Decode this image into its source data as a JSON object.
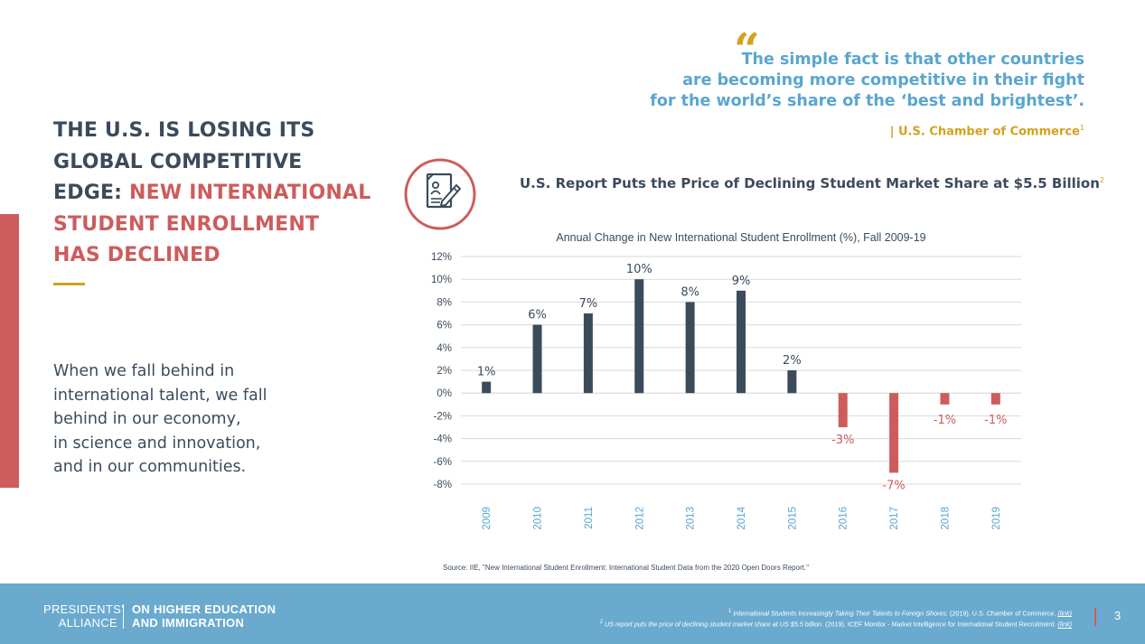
{
  "headline": {
    "line1": "THE U.S. IS LOSING ITS",
    "line2": "GLOBAL COMPETITIVE",
    "line3_lead": "EDGE: ",
    "line3_highlight": "NEW INTERNATIONAL",
    "line4": "STUDENT ENROLLMENT",
    "line5": "HAS DECLINED"
  },
  "body_lines": [
    "When we fall behind in",
    "international talent, we fall",
    "behind in our economy,",
    "in science and innovation,",
    "and in our communities."
  ],
  "quote": {
    "mark": "“",
    "line1": "The simple fact is that other countries",
    "line2": "are becoming more competitive in their fight",
    "line3": "for the world’s share of the ‘best and brightest’.",
    "attribution": "| U.S. Chamber of Commerce",
    "attribution_ref": "1"
  },
  "report": {
    "icon": "report-document-pen-icon",
    "title": "U.S. Report Puts  the Price of Declining Student Market Share at $5.5 Billion",
    "ref": "2"
  },
  "chart_data": {
    "type": "bar",
    "title": "Annual Change in New International Student Enrollment (%), Fall 2009-19",
    "xlabel": "",
    "ylabel": "",
    "categories": [
      "2009",
      "2010",
      "2011",
      "2012",
      "2013",
      "2014",
      "2015",
      "2016",
      "2017",
      "2018",
      "2019"
    ],
    "values": [
      1,
      6,
      7,
      10,
      8,
      9,
      2,
      -3,
      -7,
      -1,
      -1
    ],
    "data_labels": [
      "1%",
      "6%",
      "7%",
      "10%",
      "8%",
      "9%",
      "2%",
      "-3%",
      "-7%",
      "-1%",
      "-1%"
    ],
    "ylim": [
      -8,
      12
    ],
    "yticks": [
      12,
      10,
      8,
      6,
      4,
      2,
      0,
      -2,
      -4,
      -6,
      -8
    ],
    "ytick_labels": [
      "12%",
      "10%",
      "8%",
      "6%",
      "4%",
      "2%",
      "0%",
      "-2%",
      "-4%",
      "-6%",
      "-8%"
    ],
    "grid": true,
    "colors": {
      "positive": "#3b4b5c",
      "negative": "#cd5c5c",
      "grid": "#d9d9d9",
      "title": "#3b4b5c",
      "year_label": "#5aa6ce"
    }
  },
  "source": "Source: IIE, \"New International Student Enrollment: International Student Data from the 2020 Open Doors Report.\"",
  "footer": {
    "logo_left_1": "PRESIDENTS’",
    "logo_left_2": "ALLIANCE",
    "logo_right_1": "ON HIGHER EDUCATION",
    "logo_right_2": "AND IMMIGRATION",
    "footnote1_num": "1",
    "footnote1_title": "International Students Increasingly Taking Their Talents to Foreign Shores.",
    "footnote1_rest": " (2019). U.S. Chamber of Commerce. ",
    "footnote2_num": "2",
    "footnote2_title": "US report puts the price of declining student market share at US $5.5 billion.",
    "footnote2_rest": " (2019). ICEF Monitor - Market Intelligence for International Student Recruitment. ",
    "link_label": "(link)",
    "page_number": "3"
  },
  "colors": {
    "navy": "#3b4b5c",
    "red": "#cd5c5c",
    "gold": "#d4a11e",
    "blue": "#5aa6ce",
    "footer": "#6aaacf"
  }
}
